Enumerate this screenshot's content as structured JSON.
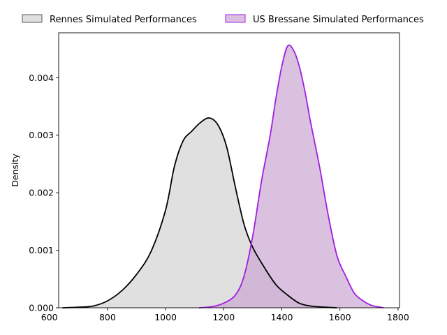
{
  "chart_data": {
    "type": "area",
    "title": "",
    "xlabel": "",
    "ylabel": "Density",
    "xlim": [
      632,
      1805
    ],
    "ylim": [
      0,
      0.00478
    ],
    "x_ticks": [
      600,
      800,
      1000,
      1200,
      1400,
      1600,
      1800
    ],
    "x_tick_labels": [
      "600",
      "800",
      "1000",
      "1200",
      "1400",
      "1600",
      "1800"
    ],
    "y_ticks": [
      0,
      0.001,
      0.002,
      0.003,
      0.004
    ],
    "y_tick_labels": [
      "0.000",
      "0.001",
      "0.002",
      "0.003",
      "0.004"
    ],
    "grid": false,
    "legend_position": "top, above plot",
    "series": [
      {
        "name": "Rennes Simulated Performances",
        "line_color": "#000000",
        "fill_color": "#d3d3d3",
        "points": [
          [
            645,
            0.0
          ],
          [
            700,
            1e-05
          ],
          [
            750,
            3e-05
          ],
          [
            800,
            0.00012
          ],
          [
            850,
            0.0003
          ],
          [
            900,
            0.00058
          ],
          [
            950,
            0.00098
          ],
          [
            1000,
            0.0017
          ],
          [
            1030,
            0.00245
          ],
          [
            1060,
            0.0029
          ],
          [
            1090,
            0.00307
          ],
          [
            1120,
            0.00322
          ],
          [
            1150,
            0.0033
          ],
          [
            1180,
            0.00318
          ],
          [
            1210,
            0.0028
          ],
          [
            1240,
            0.0021
          ],
          [
            1270,
            0.00145
          ],
          [
            1300,
            0.00105
          ],
          [
            1340,
            0.0007
          ],
          [
            1380,
            0.0004
          ],
          [
            1420,
            0.00022
          ],
          [
            1460,
            8e-05
          ],
          [
            1500,
            3e-05
          ],
          [
            1550,
            1e-05
          ],
          [
            1590,
            0.0
          ]
        ]
      },
      {
        "name": "US Bressane Simulated Performances",
        "line_color": "#a31ce0",
        "fill_color": "#c9a6d1",
        "points": [
          [
            1115,
            0.0
          ],
          [
            1160,
            2e-05
          ],
          [
            1200,
            8e-05
          ],
          [
            1240,
            0.00022
          ],
          [
            1270,
            0.00055
          ],
          [
            1300,
            0.00125
          ],
          [
            1330,
            0.0022
          ],
          [
            1360,
            0.003
          ],
          [
            1380,
            0.00365
          ],
          [
            1400,
            0.0042
          ],
          [
            1420,
            0.00455
          ],
          [
            1440,
            0.00448
          ],
          [
            1460,
            0.0042
          ],
          [
            1480,
            0.00375
          ],
          [
            1500,
            0.0032
          ],
          [
            1530,
            0.00245
          ],
          [
            1560,
            0.0016
          ],
          [
            1590,
            0.0009
          ],
          [
            1620,
            0.00055
          ],
          [
            1650,
            0.00025
          ],
          [
            1680,
            0.00012
          ],
          [
            1710,
            4e-05
          ],
          [
            1740,
            1e-05
          ],
          [
            1750,
            0.0
          ]
        ]
      }
    ]
  }
}
